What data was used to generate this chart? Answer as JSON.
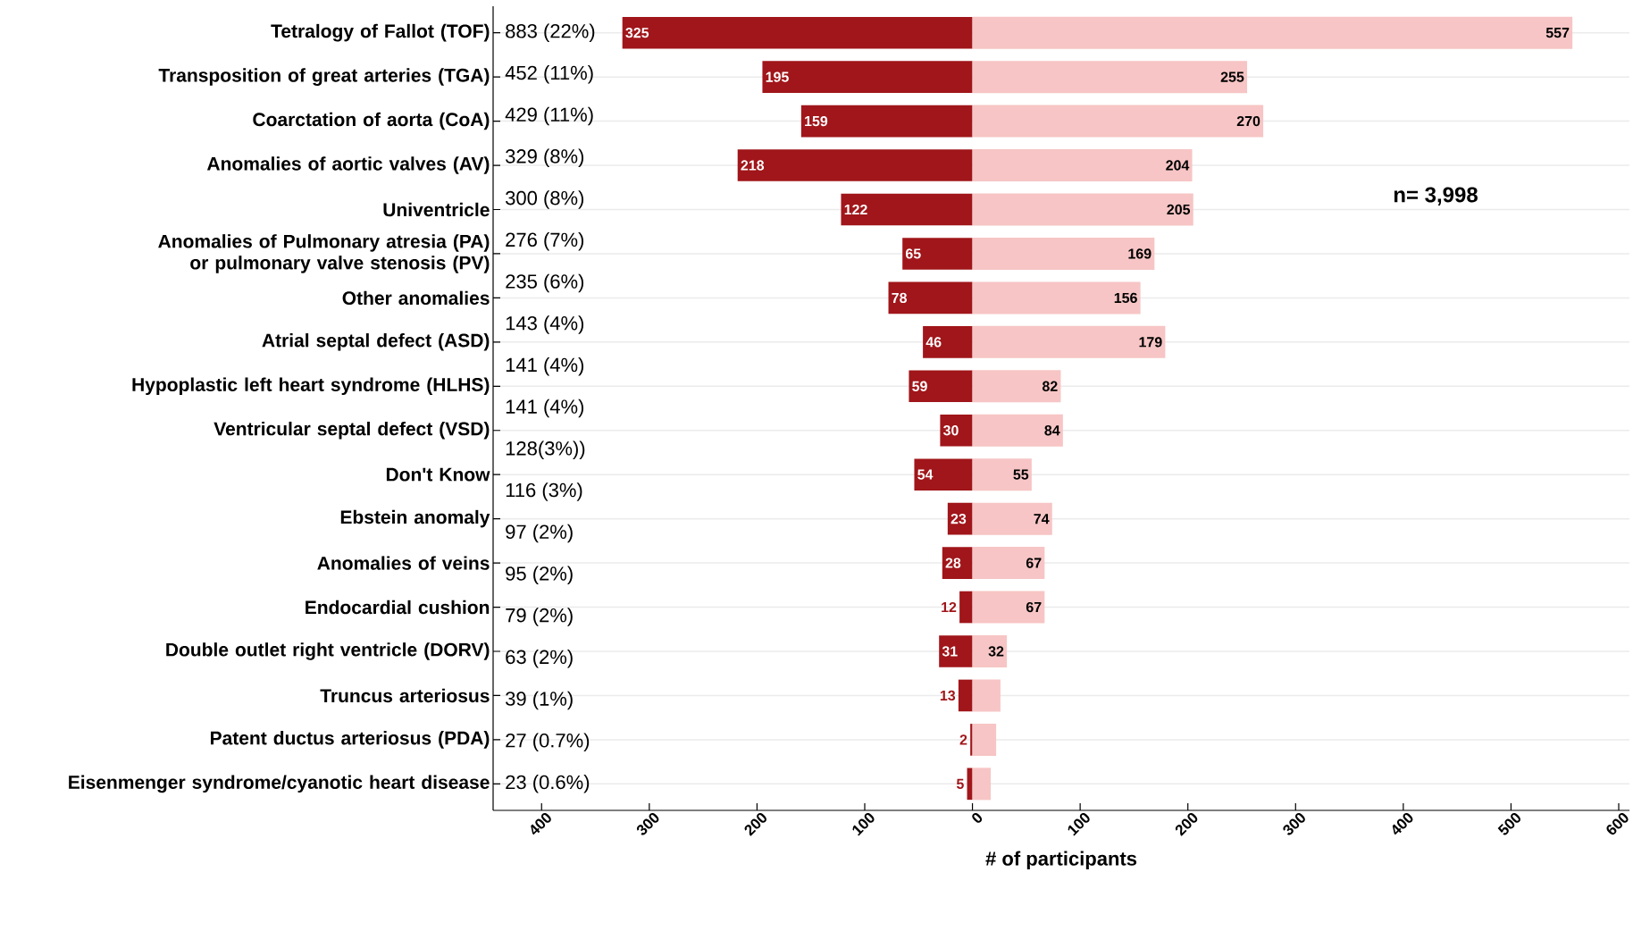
{
  "chart_data": {
    "type": "bar",
    "orientation": "horizontal",
    "xlabel": "# of participants",
    "categories": [
      "Tetralogy of Fallot (TOF)",
      "Transposition of great arteries (TGA)",
      "Coarctation of aorta (CoA)",
      "Anomalies of aortic valves (AV)",
      "Univentricle",
      "Anomalies of Pulmonary atresia (PA) or pulmonary valve stenosis (PV)",
      "Other anomalies",
      "Atrial septal defect (ASD)",
      "Hypoplastic left heart syndrome (HLHS)",
      "Ventricular septal defect (VSD)",
      "Don't Know",
      "Ebstein anomaly",
      "Anomalies of veins",
      "Endocardial cushion",
      "Double outlet right ventricle (DORV)",
      "Truncus arteriosus",
      "Patent ductus arteriosus (PDA)",
      "Eisenmenger syndrome/cyanotic heart disease"
    ],
    "series": [
      {
        "color": "#a0161a",
        "base": [
          -325,
          -195,
          -159,
          -218,
          -122,
          -65,
          -78,
          -46,
          -59,
          -30,
          -54,
          -23,
          -28,
          -12,
          -31,
          -13,
          -2,
          -5
        ],
        "values": [
          325,
          195,
          159,
          218,
          122,
          65,
          78,
          46,
          59,
          30,
          54,
          23,
          28,
          12,
          31,
          13,
          2,
          5
        ],
        "value_labels": [
          "325",
          "195",
          "159",
          "218",
          "122",
          "65",
          "78",
          "46",
          "59",
          "30",
          "54",
          "23",
          "28",
          "12",
          "31",
          "13",
          "2",
          "5"
        ]
      },
      {
        "color": "#f7c5c5",
        "values": [
          557,
          255,
          270,
          204,
          205,
          169,
          156,
          179,
          82,
          84,
          55,
          74,
          67,
          67,
          32,
          26,
          22,
          17
        ],
        "value_labels": [
          "557",
          "255",
          "270",
          "204",
          "205",
          "169",
          "156",
          "179",
          "82",
          "84",
          "55",
          "74",
          "67",
          "67",
          "32",
          null,
          null,
          null
        ]
      }
    ],
    "xlim": [
      -445,
      610
    ],
    "xticks": [
      {
        "value": -400,
        "label": "400"
      },
      {
        "value": -300,
        "label": "300"
      },
      {
        "value": -200,
        "label": "200"
      },
      {
        "value": -100,
        "label": "100"
      },
      0,
      100,
      200,
      300,
      400,
      500,
      600
    ],
    "grid": "y",
    "annotations": [
      "883 (22%)",
      "452 (11%)",
      "429 (11%)",
      "329 (8%)",
      "300 (8%)",
      "276 (7%)",
      "235 (6%)",
      "143 (4%)",
      "141 (4%)",
      "141 (4%)",
      "128(3%))",
      "116 (3%)",
      "97 (2%)",
      "95 (2%)",
      "79 (2%)",
      "63 (2%)",
      "39 (1%)",
      "27 (0.7%)",
      "23 (0.6%)",
      "n= 3,998"
    ]
  }
}
